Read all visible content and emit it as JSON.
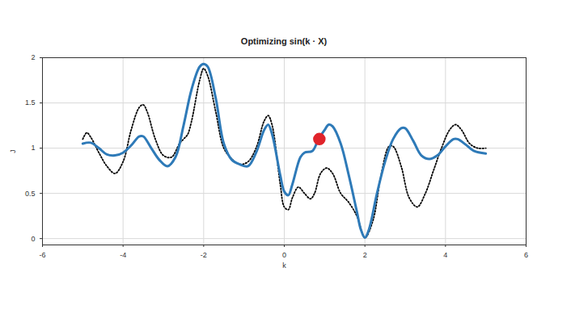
{
  "chart_data": {
    "type": "line",
    "title": "Optimizing sin(k · X)",
    "x_label": "k",
    "y_label": "J",
    "xlim": [
      -6,
      6
    ],
    "xticks": [
      -6,
      -4,
      -2,
      0,
      2,
      4,
      6
    ],
    "ylim": [
      -0.07,
      2
    ],
    "yticks": [
      0,
      0.5,
      1,
      1.5,
      2
    ],
    "grid": true,
    "series": [
      {
        "type": "line",
        "color": "#000000",
        "line_style": "dotted",
        "x": [
          -5,
          -4.9,
          -4.8,
          -4.6,
          -4.4,
          -4.2,
          -4.0,
          -3.8,
          -3.6,
          -3.5,
          -3.4,
          -3.2,
          -3.0,
          -2.8,
          -2.6,
          -2.5,
          -2.4,
          -2.3,
          -2.1,
          -2.0,
          -1.9,
          -1.7,
          -1.5,
          -1.3,
          -1.1,
          -0.9,
          -0.7,
          -0.5,
          -0.4,
          -0.3,
          -0.1,
          0,
          0.1,
          0.2,
          0.35,
          0.5,
          0.65,
          0.75,
          0.9,
          1.05,
          1.2,
          1.4,
          1.6,
          1.8,
          2.0,
          2.2,
          2.4,
          2.6,
          2.7,
          2.9,
          3.1,
          3.3,
          3.5,
          3.7,
          3.9,
          4.1,
          4.25,
          4.4,
          4.6,
          4.8,
          5.0
        ],
        "values": [
          1.1,
          1.17,
          1.12,
          0.95,
          0.8,
          0.72,
          0.85,
          1.2,
          1.45,
          1.48,
          1.4,
          1.1,
          0.92,
          0.9,
          1.05,
          1.1,
          1.15,
          1.3,
          1.75,
          1.88,
          1.8,
          1.4,
          1.0,
          0.88,
          0.82,
          0.85,
          1.0,
          1.3,
          1.36,
          1.25,
          0.6,
          0.35,
          0.32,
          0.45,
          0.57,
          0.5,
          0.44,
          0.5,
          0.72,
          0.78,
          0.72,
          0.5,
          0.4,
          0.25,
          0.01,
          0.2,
          0.7,
          1.02,
          1.02,
          0.8,
          0.45,
          0.35,
          0.5,
          0.75,
          1.0,
          1.2,
          1.26,
          1.2,
          1.05,
          1.0,
          1.0
        ]
      },
      {
        "type": "line",
        "color": "#2e7ab8",
        "line_style": "solid",
        "x": [
          -5,
          -4.8,
          -4.6,
          -4.4,
          -4.2,
          -4.0,
          -3.8,
          -3.6,
          -3.5,
          -3.3,
          -3.1,
          -2.9,
          -2.7,
          -2.5,
          -2.3,
          -2.1,
          -2.0,
          -1.9,
          -1.7,
          -1.5,
          -1.3,
          -1.1,
          -0.9,
          -0.7,
          -0.5,
          -0.4,
          -0.3,
          -0.1,
          0,
          0.1,
          0.2,
          0.4,
          0.5,
          0.7,
          0.85,
          1.0,
          1.1,
          1.2,
          1.4,
          1.6,
          1.8,
          1.9,
          2.0,
          2.1,
          2.3,
          2.5,
          2.7,
          2.9,
          3.0,
          3.2,
          3.4,
          3.6,
          3.8,
          4.0,
          4.2,
          4.3,
          4.5,
          4.7,
          5.0
        ],
        "values": [
          1.05,
          1.06,
          1.0,
          0.93,
          0.92,
          0.95,
          1.03,
          1.13,
          1.13,
          1.0,
          0.87,
          0.8,
          0.9,
          1.25,
          1.65,
          1.9,
          1.93,
          1.9,
          1.55,
          1.05,
          0.87,
          0.82,
          0.8,
          0.95,
          1.2,
          1.26,
          1.15,
          0.7,
          0.52,
          0.48,
          0.6,
          0.9,
          0.95,
          0.97,
          1.1,
          1.2,
          1.26,
          1.24,
          1.05,
          0.7,
          0.3,
          0.1,
          0.01,
          0.1,
          0.5,
          0.85,
          1.1,
          1.22,
          1.22,
          1.08,
          0.92,
          0.88,
          0.92,
          1.02,
          1.1,
          1.1,
          1.04,
          0.97,
          0.94
        ]
      },
      {
        "type": "scatter",
        "color": "#e0242b",
        "marker": "circle",
        "x": [
          0.87
        ],
        "values": [
          1.1
        ]
      }
    ]
  }
}
